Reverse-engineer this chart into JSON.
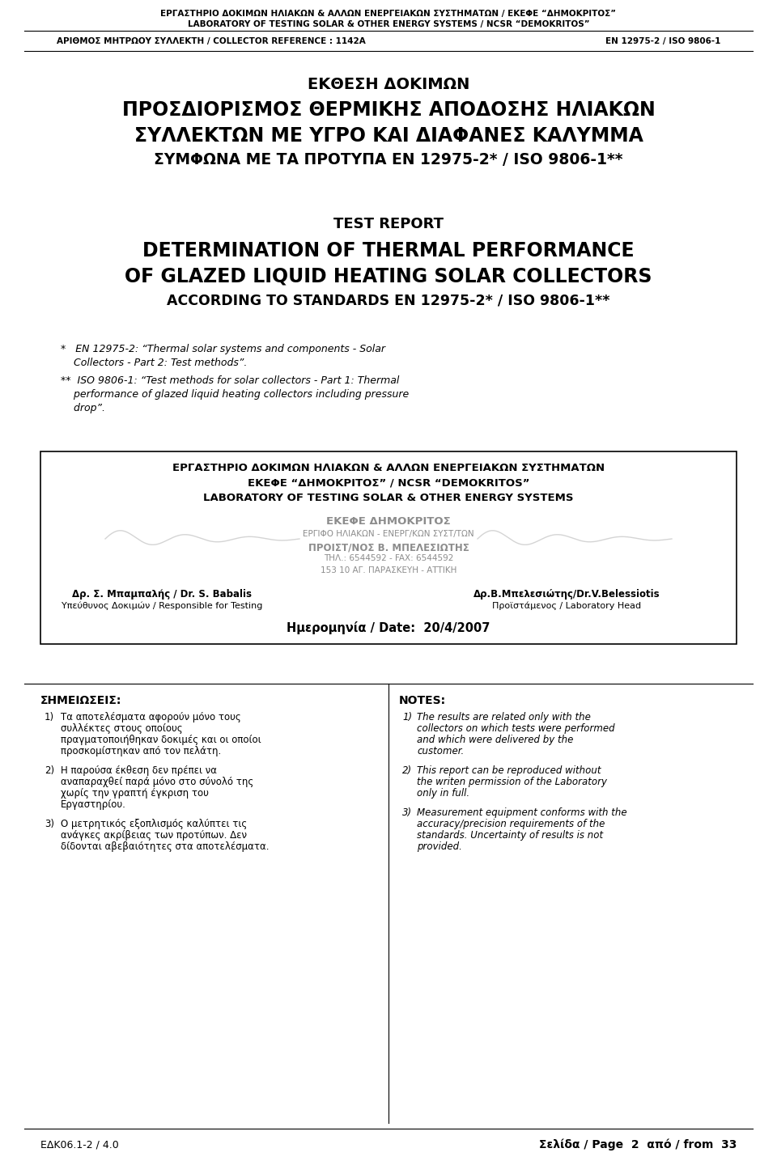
{
  "bg_color": "#ffffff",
  "text_color": "#000000",
  "header_line1": "ΕΡΓΑΣΤΗΡΙΟ ΔΟΚΙΜΩΝ ΗΛΙΑΚΩΝ & ΑΛΛΩΝ ΕΝΕΡΓΕΙΑΚΩΝ ΣΥΣΤΗΜΑΤΩΝ / ΕΚΕΦΕ “ΔΗΜΟΚΡΙΤΟΣ”",
  "header_line2": "LABORATORY OF TESTING SOLAR & OTHER ENERGY SYSTEMS / NCSR “DEMOKRITOS”",
  "header_line3_left": "ΑΡΙΘΜΟΣ ΜΗΤΡΩΟΥ ΣΥΛΛΕΚΤΗ / COLLECTOR REFERENCE : 1142A",
  "header_line3_right": "EN 12975-2 / ISO 9806-1",
  "greek_title1": "ΕΚΘΕΣΗ ΔΟΚΙΜΩΝ",
  "greek_title2": "ΠΡΟΣΔΙΟΡΙΣΜΟΣ ΘΕΡΜΙΚΗΣ ΑΠΟΔΟΣΗΣ ΗΛΙΑΚΩΝ",
  "greek_title3": "ΣΥΛΛΕΚΤΩΝ ΜΕ ΥΓΡΟ ΚΑΙ ΔΙΑΦΑΝΕΣ ΚΑΛΥΜΜΑ",
  "greek_title4": "ΣΥΜΦΩΝΑ ΜΕ ΤΑ ΠΡΟΤΥΠΑ ΕΝ 12975-2* / ISO 9806-1**",
  "eng_title0": "TEST REPORT",
  "eng_title1": "DETERMINATION OF THERMAL PERFORMANCE",
  "eng_title2": "OF GLAZED LIQUID HEATING SOLAR COLLECTORS",
  "eng_title3": "ACCORDING TO STANDARDS EN 12975-2* / ISO 9806-1**",
  "fn1_lines": [
    "*   EN 12975-2: “Thermal solar systems and components - Solar",
    "    Collectors - Part 2: Test methods”."
  ],
  "fn2_lines": [
    "**  ISO 9806-1: “Test methods for solar collectors - Part 1: Thermal",
    "    performance of glazed liquid heating collectors including pressure",
    "    drop”."
  ],
  "box_line1": "ΕΡΓΑΣΤΗΡΙΟ ΔΟΚΙΜΩΝ ΗΛΙΑΚΩΝ & ΑΛΛΩΝ ΕΝΕΡΓΕΙΑΚΩΝ ΣΥΣΤΗΜΑΤΩΝ",
  "box_line2": "ΕΚΕΦΕ “ΔΗΜΟΚΡΙΤΟΣ” / NCSR “DEMOKRITOS”",
  "box_line3": "LABORATORY OF TESTING SOLAR & OTHER ENERGY SYSTEMS",
  "box_sig_center": "ΕΚΕΦΕ ΔΗΜΟΚΡΙΤΟΣ",
  "box_sig_sub1": "ΕΡΓΙΦΟ ΗΛΙΑΚΩΝ - ΕΝΕΡΓ/ΚΩΝ ΣΥΣΤ/ΤΩΝ",
  "box_sig_sub2": "ΠΡΟΙΣΤ/ΝΟΣ Β. ΜΠΕΛΕΣΙΩΤΗΣ",
  "box_sig_sub3": "ΤΗΛ.: 6544592 - FAX: 6544592",
  "box_sig_sub4": "153 10 ΑΓ. ΠΑΡΑΣΚΕΥΗ - ΑΤΤΙΚΗ",
  "box_bottom_left1": "Δρ. Σ. Μπαμπαλής / Dr. S. Babalis",
  "box_bottom_left2": "Υπεύθυνος Δοκιμών / Responsible for Testing",
  "box_bottom_right1": "Δρ.Β.Μπελεσιώτης/Dr.V.Belessiotis",
  "box_bottom_right2": "Προϊστάμενος / Laboratory Head",
  "box_date": "Ημερομηνία / Date:  20/4/2007",
  "notes_greek_title": "ΣΗΜΕΙΩΣΕΙΣ:",
  "notes_eng_title": "NOTES:",
  "notes_greek": [
    "Τα αποτελέσματα αφορούν μόνο τους συλλέκτες στους οποίους πραγματοποιήθηκαν δοκιμές και οι οποίοι προσκομίστηκαν από τον πελάτη.",
    "Η παρούσα έκθεση δεν πρέπει να αναπαραχθεί παρά μόνο στο σύνολό της χωρίς την γραπτή έγκριση του Εργαστηρίου.",
    "Ο μετρητικός εξοπλισμός καλύπτει τις ανάγκες ακρίβειας των προτύπων. Δεν δίδονται αβεβαιότητες στα αποτελέσματα."
  ],
  "notes_eng": [
    "The results are related only with the collectors on which tests were performed and which were delivered by the customer.",
    "This report can be reproduced without the writen permission of the Laboratory only in full.",
    "Measurement equipment conforms with the accuracy/precision requirements of the standards. Uncertainty of results is not provided."
  ],
  "footer_left": "ΕΔΚ06.1-2 / 4.0",
  "footer_right": "Σελίδα / Page  2  από / from  33"
}
